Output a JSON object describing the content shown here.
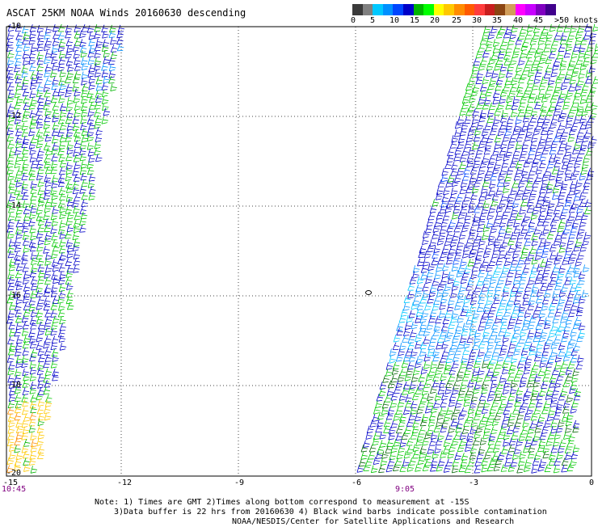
{
  "title": "ASCAT 25KM NOAA Winds 20160630 descending",
  "scale": {
    "colors": [
      "#3a3a3a",
      "#808080",
      "#00c8ff",
      "#0090ff",
      "#0046ff",
      "#0000c8",
      "#00b400",
      "#00ff00",
      "#ffff00",
      "#ffc800",
      "#ff8c00",
      "#ff5a00",
      "#ff3c3c",
      "#c81e1e",
      "#8b4513",
      "#d29e5a",
      "#ff00ff",
      "#c800ff",
      "#8000c0",
      "#40008c"
    ],
    "labels": [
      "0",
      "5",
      "10",
      "15",
      "20",
      "25",
      "30",
      "35",
      "40",
      "45",
      ">50 knots"
    ]
  },
  "axes": {
    "lat_labels": [
      "-10",
      "-12",
      "-14",
      "-16",
      "-18",
      "-20"
    ],
    "lon_labels": [
      "-15",
      "-12",
      "-9",
      "-6",
      "-3",
      "0"
    ]
  },
  "times": {
    "left": "10:45",
    "right": "9:05"
  },
  "notes": {
    "line1": "Note: 1) Times are GMT 2)Times along bottom correspond to measurement at -15S",
    "line2": "3)Data buffer is 22 hrs from 20160630 4) Black wind barbs indicate possible contamination",
    "line3": "NOAA/NESDIS/Center for Satellite Applications and Research"
  }
}
